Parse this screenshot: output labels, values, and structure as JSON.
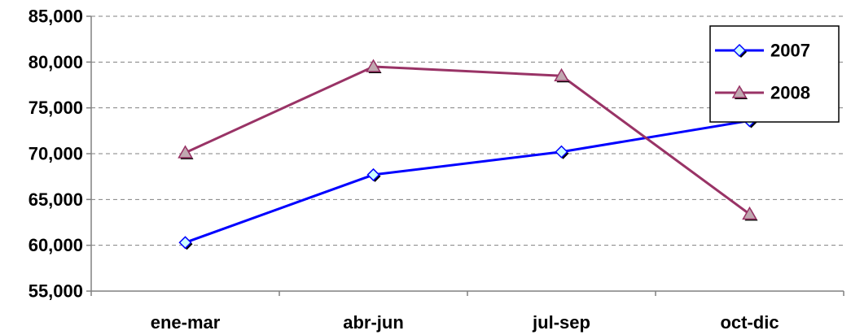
{
  "chart_data": {
    "type": "line",
    "categories": [
      "ene-mar",
      "abr-jun",
      "jul-sep",
      "oct-dic"
    ],
    "series": [
      {
        "name": "2007",
        "values": [
          60300,
          67700,
          70200,
          73600
        ],
        "color": "#0000ff",
        "marker": "diamond",
        "marker_fill": "#ccffff"
      },
      {
        "name": "2008",
        "values": [
          70100,
          79500,
          78500,
          63400
        ],
        "color": "#993366",
        "marker": "triangle",
        "marker_fill": "#c0a8b0"
      }
    ],
    "ylim": [
      55000,
      85000
    ],
    "yticks": [
      55000,
      60000,
      65000,
      70000,
      75000,
      80000,
      85000
    ],
    "ytick_labels": [
      "55,000",
      "60,000",
      "65,000",
      "70,000",
      "75,000",
      "80,000",
      "85,000"
    ],
    "grid": true,
    "legend": "top-right",
    "title": "",
    "xlabel": "",
    "ylabel": ""
  }
}
